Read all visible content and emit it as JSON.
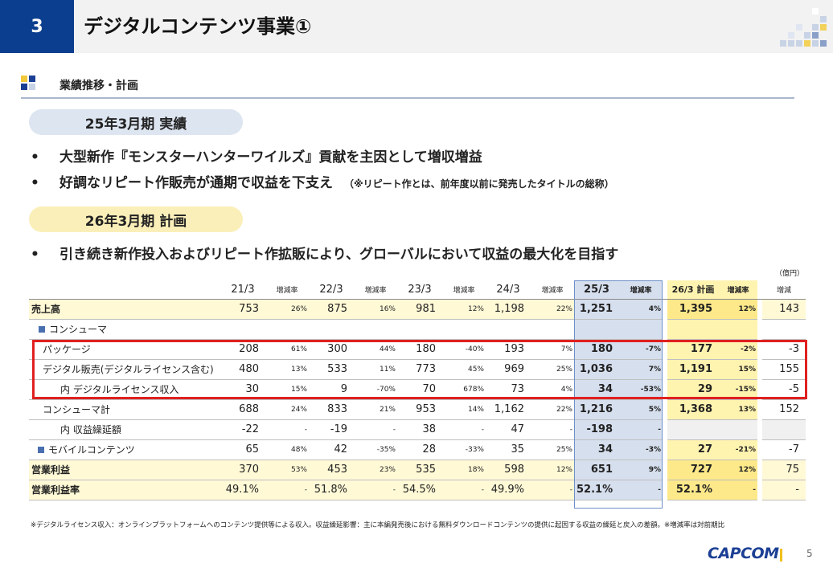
{
  "header": {
    "number": "3",
    "title": "デジタルコンテンツ事業①"
  },
  "section": {
    "label": "業績推移・計画"
  },
  "results": {
    "pill": "25年3月期 実績",
    "bullets": [
      "大型新作『モンスターハンターワイルズ』貢献を主因として増収増益",
      "好調なリピート作販売が通期で収益を下支え"
    ],
    "note": "（※リピート作とは、前年度以前に発売したタイトルの総称）"
  },
  "plan": {
    "pill": "26年3月期 計画",
    "bullets": [
      "引き続き新作投入およびリピート作拡販により、グローバルにおいて収益の最大化を目指す"
    ]
  },
  "bullet_mark": "•",
  "unit": "（億円）",
  "table": {
    "columns": [
      "21/3",
      "増減率",
      "22/3",
      "増減率",
      "23/3",
      "増減率",
      "24/3",
      "増減率",
      "25/3",
      "増減率",
      "26/3 計画",
      "増減率",
      "増減"
    ],
    "rows": [
      {
        "label": "売上高",
        "values": [
          "753",
          "26%",
          "875",
          "16%",
          "981",
          "12%",
          "1,198",
          "22%",
          "1,251",
          "4%",
          "1,395",
          "12%",
          "143"
        ]
      },
      {
        "label": "コンシューマ"
      },
      {
        "label": "パッケージ",
        "values": [
          "208",
          "61%",
          "300",
          "44%",
          "180",
          "-40%",
          "193",
          "7%",
          "180",
          "-7%",
          "177",
          "-2%",
          "-3"
        ]
      },
      {
        "label": "デジタル販売(デジタルライセンス含む)",
        "values": [
          "480",
          "13%",
          "533",
          "11%",
          "773",
          "45%",
          "969",
          "25%",
          "1,036",
          "7%",
          "1,191",
          "15%",
          "155"
        ]
      },
      {
        "label": "内 デジタルライセンス収入",
        "values": [
          "30",
          "15%",
          "9",
          "-70%",
          "70",
          "678%",
          "73",
          "4%",
          "34",
          "-53%",
          "29",
          "-15%",
          "-5"
        ]
      },
      {
        "label": "コンシューマ計",
        "values": [
          "688",
          "24%",
          "833",
          "21%",
          "953",
          "14%",
          "1,162",
          "22%",
          "1,216",
          "5%",
          "1,368",
          "13%",
          "152"
        ]
      },
      {
        "label": "内 収益繰延額",
        "values": [
          "-22",
          "-",
          "-19",
          "-",
          "38",
          "-",
          "47",
          "-",
          "-198",
          "-",
          "",
          "",
          ""
        ]
      },
      {
        "label": "モバイルコンテンツ",
        "values": [
          "65",
          "48%",
          "42",
          "-35%",
          "28",
          "-33%",
          "35",
          "25%",
          "34",
          "-3%",
          "27",
          "-21%",
          "-7"
        ]
      },
      {
        "label": "営業利益",
        "values": [
          "370",
          "53%",
          "453",
          "23%",
          "535",
          "18%",
          "598",
          "12%",
          "651",
          "9%",
          "727",
          "12%",
          "75"
        ]
      },
      {
        "label": "営業利益率",
        "values": [
          "49.1%",
          "-",
          "51.8%",
          "-",
          "54.5%",
          "-",
          "49.9%",
          "-",
          "52.1%",
          "-",
          "52.1%",
          "-",
          "-"
        ]
      }
    ]
  },
  "footnote": "※デジタルライセンス収入：オンラインプラットフォームへのコンテンツ提供等による収入。収益繰延影響：主に本編発売後における無料ダウンロードコンテンツの提供に起因する収益の繰延と戻入の差額。※増減率は対前期比",
  "logo": "CAPCOM",
  "page_number": "5",
  "colors": {
    "accent": "#0b3e8e",
    "highlight_box": "#e02020",
    "current_year": "#d6dfee",
    "plan_year": "#fff3b0"
  }
}
